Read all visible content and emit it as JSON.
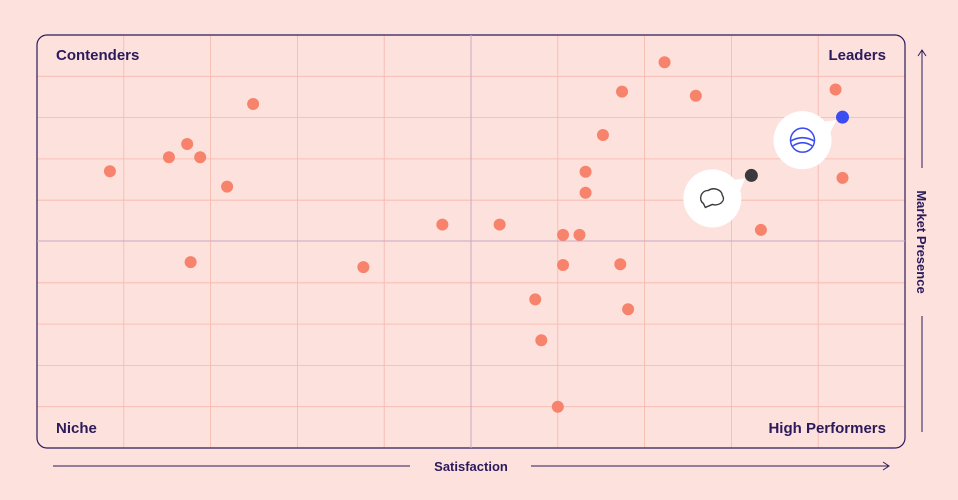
{
  "chart_data": {
    "type": "scatter",
    "xlabel": "Satisfaction",
    "ylabel": "Market Presence",
    "xlim": [
      0,
      100
    ],
    "ylim": [
      0,
      100
    ],
    "grid": true,
    "quadrants": {
      "top_left": "Contenders",
      "top_right": "Leaders",
      "bottom_left": "Niche",
      "bottom_right": "High Performers"
    },
    "colors": {
      "background": "#fde1dc",
      "grid": "#f5b8ad",
      "frame": "#2b1a5c",
      "point": "#f8836c",
      "highlight_a": "#3b4cf0",
      "highlight_b": "#3a3a3a",
      "text": "#2b1a5c"
    },
    "points": [
      {
        "x": 72.3,
        "y": 93.4
      },
      {
        "x": 67.4,
        "y": 86.3
      },
      {
        "x": 75.9,
        "y": 85.3
      },
      {
        "x": 92.0,
        "y": 86.8
      },
      {
        "x": 65.2,
        "y": 75.8
      },
      {
        "x": 24.9,
        "y": 83.3
      },
      {
        "x": 17.3,
        "y": 73.6
      },
      {
        "x": 15.2,
        "y": 70.4
      },
      {
        "x": 18.8,
        "y": 70.4
      },
      {
        "x": 8.4,
        "y": 67.0
      },
      {
        "x": 21.9,
        "y": 63.3
      },
      {
        "x": 63.2,
        "y": 66.9
      },
      {
        "x": 63.2,
        "y": 61.8
      },
      {
        "x": 92.8,
        "y": 65.4
      },
      {
        "x": 46.7,
        "y": 54.1
      },
      {
        "x": 53.3,
        "y": 54.1
      },
      {
        "x": 60.6,
        "y": 51.6
      },
      {
        "x": 62.5,
        "y": 51.6
      },
      {
        "x": 83.4,
        "y": 52.8
      },
      {
        "x": 17.7,
        "y": 45.0
      },
      {
        "x": 37.6,
        "y": 43.8
      },
      {
        "x": 60.6,
        "y": 44.3
      },
      {
        "x": 67.2,
        "y": 44.5
      },
      {
        "x": 57.4,
        "y": 36.0
      },
      {
        "x": 68.1,
        "y": 33.6
      },
      {
        "x": 58.1,
        "y": 26.1
      },
      {
        "x": 60.0,
        "y": 10.0
      }
    ],
    "highlights": [
      {
        "x": 92.8,
        "y": 80.1,
        "icon": "sphere-logo-icon",
        "color": "#3b4cf0"
      },
      {
        "x": 82.3,
        "y": 66.0,
        "icon": "speech-bubble-icon",
        "color": "#3a3a3a"
      }
    ]
  }
}
